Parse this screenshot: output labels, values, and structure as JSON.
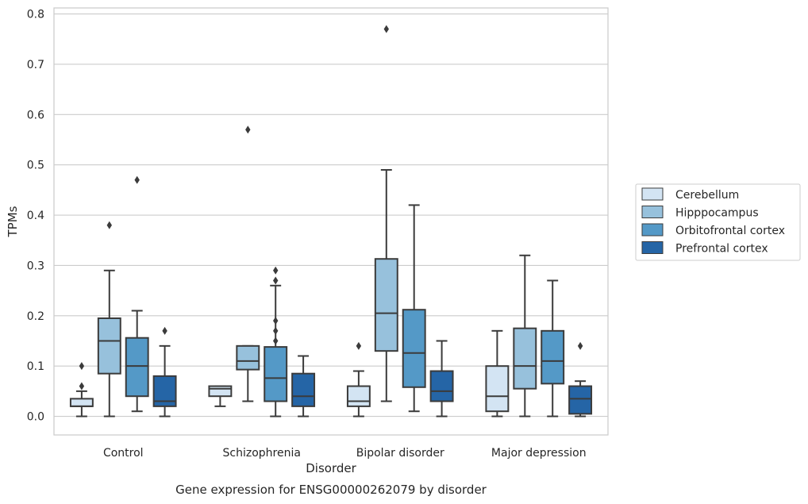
{
  "chart_data": {
    "type": "box",
    "title": "",
    "caption": "Gene expression for ENSG00000262079 by disorder",
    "xlabel": "Disorder",
    "ylabel": "TPMs",
    "ylim": [
      -0.037,
      0.812
    ],
    "yticks": [
      0.0,
      0.1,
      0.2,
      0.3,
      0.4,
      0.5,
      0.6,
      0.7,
      0.8
    ],
    "ytick_labels": [
      "0.0",
      "0.1",
      "0.2",
      "0.3",
      "0.4",
      "0.5",
      "0.6",
      "0.7",
      "0.8"
    ],
    "grid": true,
    "legend_position": "right",
    "categories": [
      "Control",
      "Schizophrenia",
      "Bipolar disorder",
      "Major depression"
    ],
    "series": [
      {
        "name": "Cerebellum",
        "color": "#d3e4f3",
        "boxes": [
          {
            "whislo": 0.0,
            "q1": 0.02,
            "med": 0.02,
            "q3": 0.035,
            "whishi": 0.05,
            "fliers": [
              0.06,
              0.1
            ]
          },
          {
            "whislo": 0.02,
            "q1": 0.04,
            "med": 0.055,
            "q3": 0.06,
            "whishi": 0.06,
            "fliers": []
          },
          {
            "whislo": 0.0,
            "q1": 0.02,
            "med": 0.03,
            "q3": 0.06,
            "whishi": 0.09,
            "fliers": [
              0.14
            ]
          },
          {
            "whislo": 0.0,
            "q1": 0.01,
            "med": 0.04,
            "q3": 0.1,
            "whishi": 0.17,
            "fliers": []
          }
        ]
      },
      {
        "name": "Hipppocampus",
        "color": "#97c1dc",
        "boxes": [
          {
            "whislo": 0.0,
            "q1": 0.085,
            "med": 0.15,
            "q3": 0.195,
            "whishi": 0.29,
            "fliers": [
              0.38
            ]
          },
          {
            "whislo": 0.03,
            "q1": 0.093,
            "med": 0.11,
            "q3": 0.14,
            "whishi": 0.14,
            "fliers": [
              0.57
            ]
          },
          {
            "whislo": 0.03,
            "q1": 0.13,
            "med": 0.205,
            "q3": 0.313,
            "whishi": 0.49,
            "fliers": [
              0.77
            ]
          },
          {
            "whislo": 0.0,
            "q1": 0.055,
            "med": 0.1,
            "q3": 0.175,
            "whishi": 0.32,
            "fliers": []
          }
        ]
      },
      {
        "name": "Orbitofrontal cortex",
        "color": "#5499c7",
        "boxes": [
          {
            "whislo": 0.01,
            "q1": 0.04,
            "med": 0.1,
            "q3": 0.156,
            "whishi": 0.21,
            "fliers": [
              0.47
            ]
          },
          {
            "whislo": 0.0,
            "q1": 0.03,
            "med": 0.076,
            "q3": 0.138,
            "whishi": 0.26,
            "fliers": [
              0.15,
              0.17,
              0.19,
              0.27,
              0.29
            ]
          },
          {
            "whislo": 0.01,
            "q1": 0.058,
            "med": 0.126,
            "q3": 0.212,
            "whishi": 0.42,
            "fliers": []
          },
          {
            "whislo": 0.0,
            "q1": 0.065,
            "med": 0.11,
            "q3": 0.17,
            "whishi": 0.27,
            "fliers": []
          }
        ]
      },
      {
        "name": "Prefrontal cortex",
        "color": "#2565a6",
        "boxes": [
          {
            "whislo": 0.0,
            "q1": 0.02,
            "med": 0.03,
            "q3": 0.08,
            "whishi": 0.14,
            "fliers": [
              0.17
            ]
          },
          {
            "whislo": 0.0,
            "q1": 0.02,
            "med": 0.04,
            "q3": 0.085,
            "whishi": 0.12,
            "fliers": []
          },
          {
            "whislo": 0.0,
            "q1": 0.03,
            "med": 0.05,
            "q3": 0.09,
            "whishi": 0.15,
            "fliers": []
          },
          {
            "whislo": 0.0,
            "q1": 0.005,
            "med": 0.035,
            "q3": 0.06,
            "whishi": 0.07,
            "fliers": [
              0.14
            ]
          }
        ]
      }
    ]
  }
}
